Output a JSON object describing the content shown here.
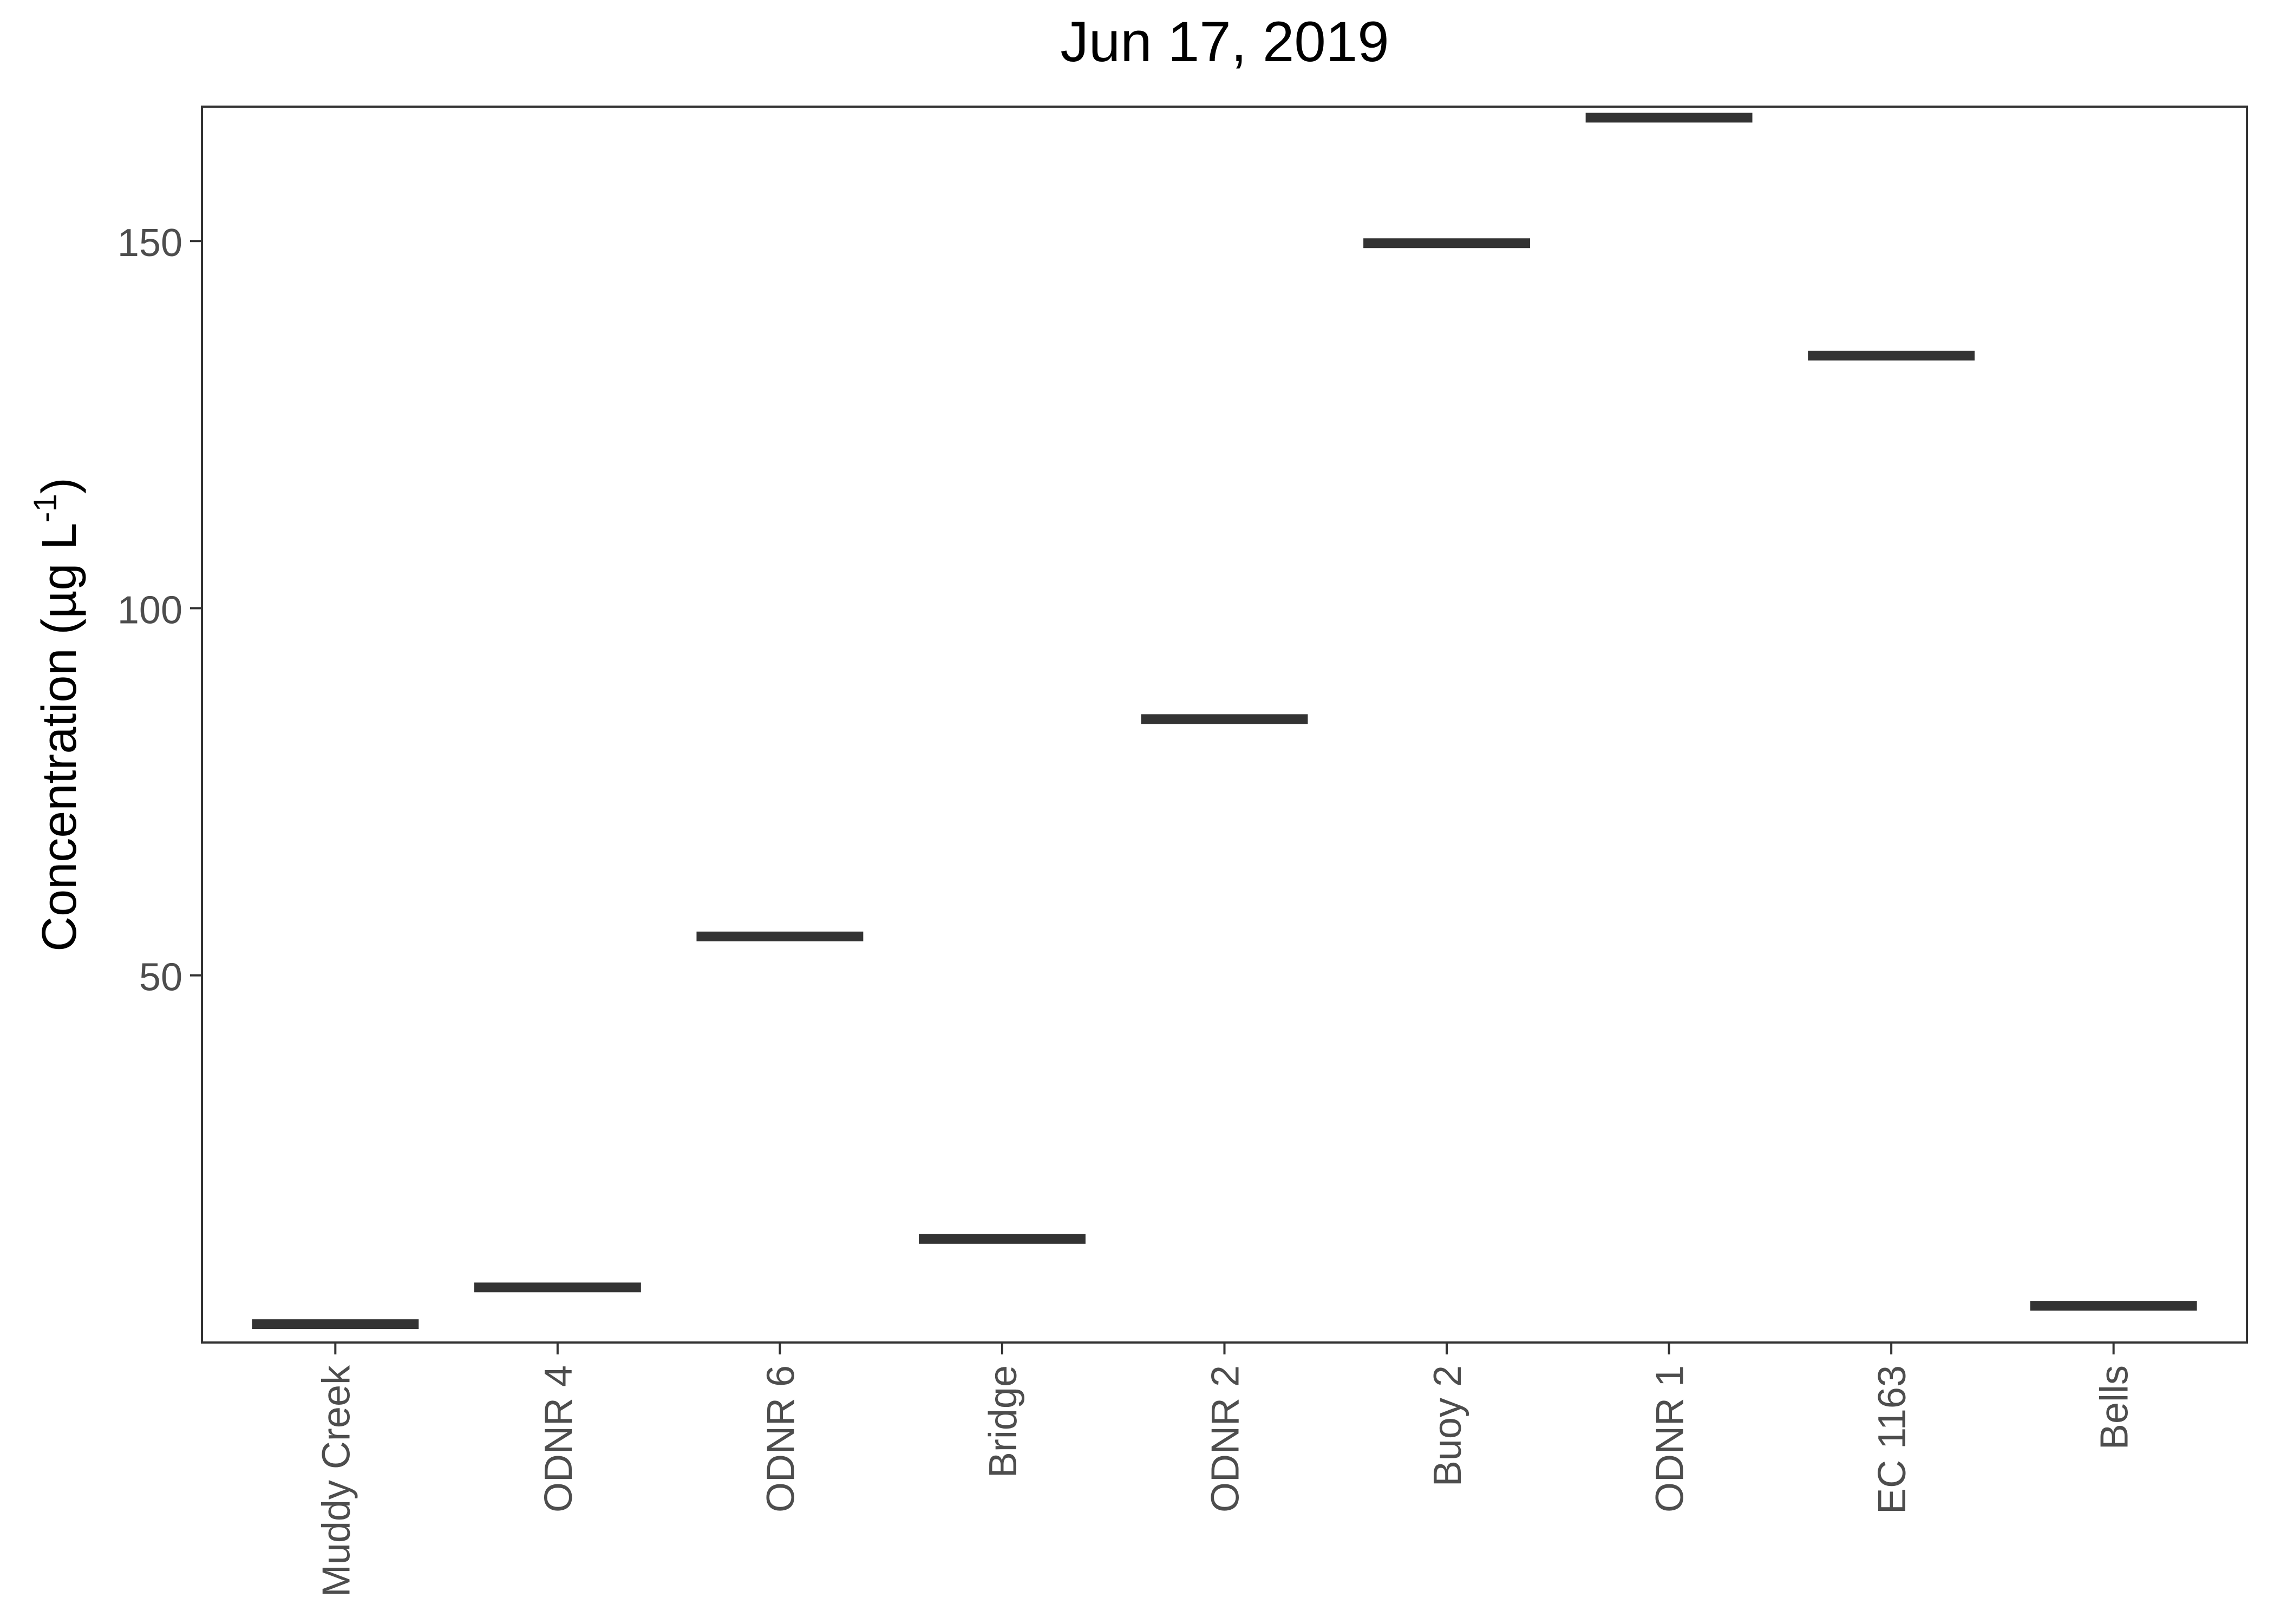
{
  "chart_data": {
    "type": "bar",
    "mark": "horizontal-segment",
    "title": "Jun 17, 2019",
    "xlabel": "",
    "ylabel": {
      "prefix": "Concentration (µg L",
      "superscript": "-1",
      "suffix": ")"
    },
    "categories": [
      "Muddy Creek",
      "ODNR 4",
      "ODNR 6",
      "Bridge",
      "ODNR 2",
      "Buoy 2",
      "ODNR 1",
      "EC 1163",
      "Bells"
    ],
    "values": [
      2.5,
      7.5,
      55.3,
      14.1,
      84.9,
      149.7,
      166.8,
      134.4,
      5.0
    ],
    "ylim": [
      0,
      168.3
    ],
    "yticks": [
      50,
      100,
      150
    ],
    "ytick_labels": [
      "50",
      "100",
      "150"
    ],
    "grid": false,
    "legend": "none",
    "colors": {
      "mark": "#333333",
      "panel_border": "#333333",
      "tick": "#333333",
      "tick_label": "#4d4d4d",
      "background": "#ffffff"
    }
  }
}
